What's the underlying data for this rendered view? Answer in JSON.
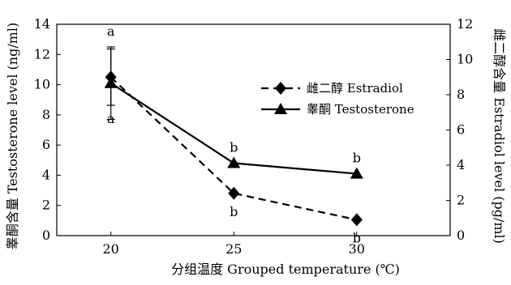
{
  "chart_data": {
    "type": "line",
    "x": [
      20,
      25,
      30
    ],
    "xlabel": "分组温度 Grouped temperature (℃)",
    "ylabel_left": "睾酮含量 Testosterone level (ng/ml)",
    "ylabel_right": "雌二醇含量 Estradiol level (pg/ml)",
    "ylim_left": [
      0,
      14
    ],
    "ylim_right": [
      0,
      12
    ],
    "yticks_left": [
      0,
      2,
      4,
      6,
      8,
      10,
      12,
      14
    ],
    "yticks_right": [
      0,
      2,
      4,
      6,
      8,
      10,
      12
    ],
    "xticks": [
      20,
      25,
      30
    ],
    "grid": false,
    "legend_position": "center-right",
    "series": [
      {
        "name": "雌二醇 Estradiol",
        "axis": "right",
        "marker": "diamond",
        "line_style": "dashed",
        "values": [
          9.0,
          2.4,
          0.9
        ],
        "error": [
          1.6,
          null,
          null
        ],
        "labels": [
          "a",
          "b",
          "b"
        ]
      },
      {
        "name": "睾酮 Testosterone",
        "axis": "left",
        "marker": "triangle",
        "line_style": "solid",
        "values": [
          10.1,
          4.8,
          4.1
        ],
        "error": [
          2.4,
          null,
          null
        ],
        "labels": [
          "a",
          "b",
          "b"
        ]
      }
    ]
  }
}
